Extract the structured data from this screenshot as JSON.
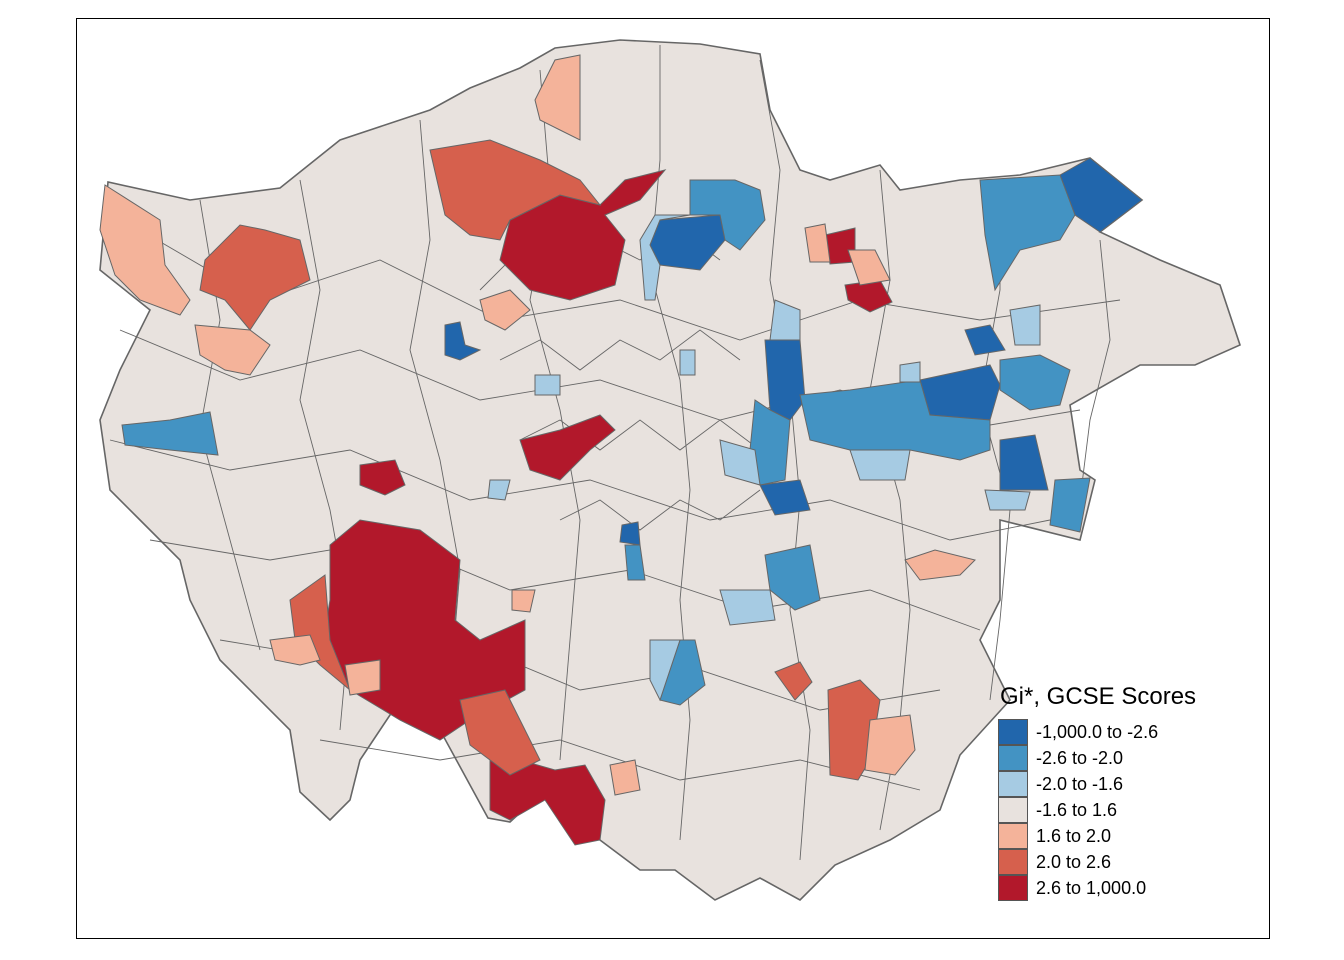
{
  "map": {
    "legend_title": "Gi*, GCSE Scores",
    "boundary_color": "#666666",
    "classes": [
      {
        "label": "-1,000.0 to -2.6",
        "color": "#2166ac"
      },
      {
        "label": "-2.6 to -2.0",
        "color": "#4393c3"
      },
      {
        "label": "-2.0 to -1.6",
        "color": "#a6cbe3"
      },
      {
        "label": "-1.6 to 1.6",
        "color": "#e8e2de"
      },
      {
        "label": "1.6 to 2.0",
        "color": "#f4b39a"
      },
      {
        "label": "2.0 to 2.6",
        "color": "#d6604d"
      },
      {
        "label": "2.6 to 1,000.0",
        "color": "#b2182b"
      }
    ]
  }
}
